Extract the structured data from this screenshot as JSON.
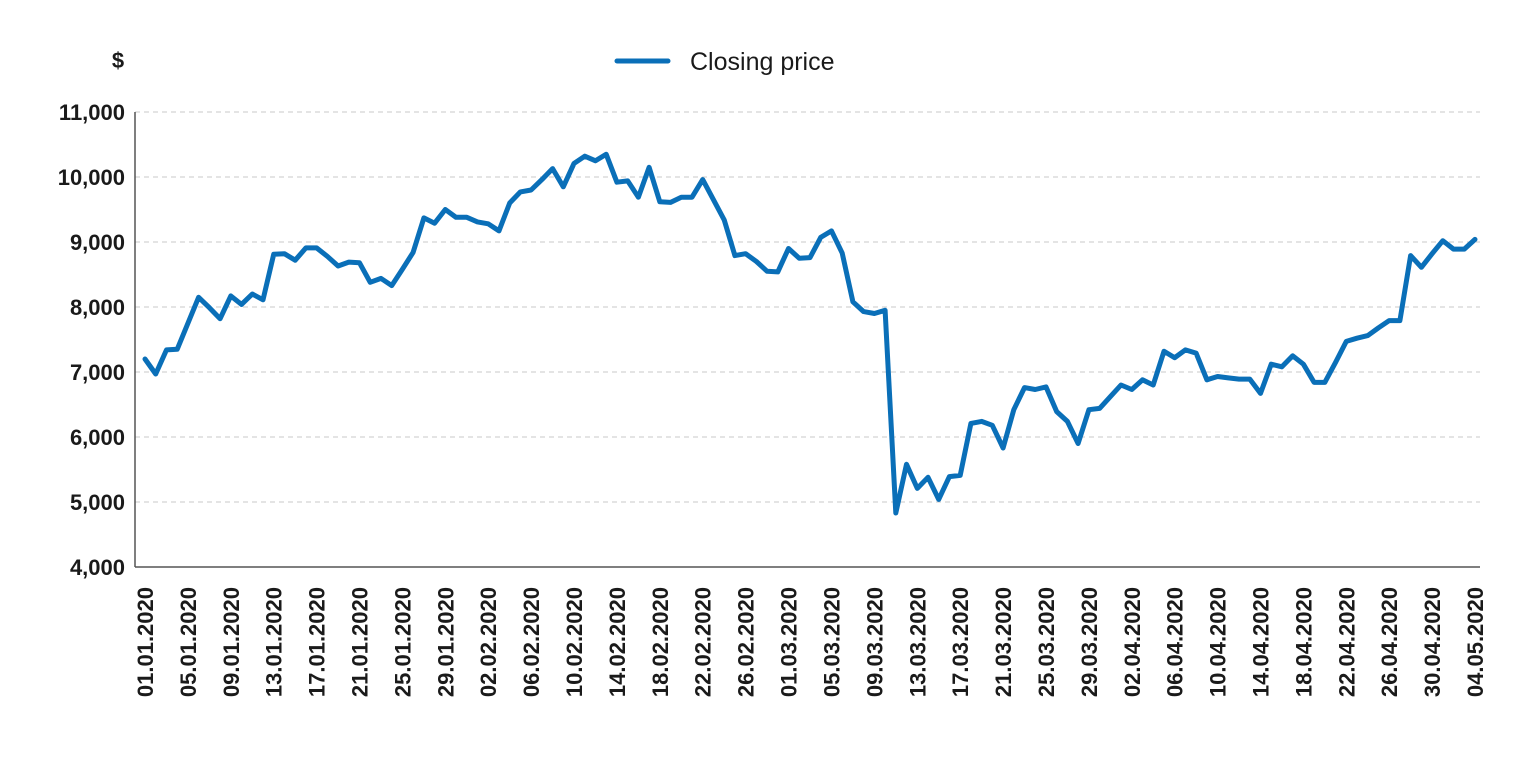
{
  "chart_data": {
    "type": "line",
    "title": "",
    "xlabel": "",
    "ylabel": "",
    "y_unit": "$",
    "ylim": [
      4000,
      11000
    ],
    "yticks": [
      4000,
      5000,
      6000,
      7000,
      8000,
      9000,
      10000,
      11000
    ],
    "ytick_labels": [
      "4,000",
      "5,000",
      "6,000",
      "7,000",
      "8,000",
      "9,000",
      "10,000",
      "11,000"
    ],
    "grid": "horizontal dashed",
    "legend_position": "top-center",
    "line_color": "#0a6fb8",
    "xtick_labels": [
      "01.01.2020",
      "05.01.2020",
      "09.01.2020",
      "13.01.2020",
      "17.01.2020",
      "21.01.2020",
      "25.01.2020",
      "29.01.2020",
      "02.02.2020",
      "06.02.2020",
      "10.02.2020",
      "14.02.2020",
      "18.02.2020",
      "22.02.2020",
      "26.02.2020",
      "01.03.2020",
      "05.03.2020",
      "09.03.2020",
      "13.03.2020",
      "17.03.2020",
      "21.03.2020",
      "25.03.2020",
      "29.03.2020",
      "02.04.2020",
      "06.04.2020",
      "10.04.2020",
      "14.04.2020",
      "18.04.2020",
      "22.04.2020",
      "26.04.2020",
      "30.04.2020",
      "04.05.2020"
    ],
    "series": [
      {
        "name": "Closing price",
        "values": [
          7200,
          6970,
          7340,
          7350,
          7750,
          8150,
          7990,
          7820,
          8170,
          8040,
          8200,
          8110,
          8810,
          8820,
          8720,
          8910,
          8910,
          8780,
          8630,
          8690,
          8680,
          8380,
          8440,
          8330,
          8580,
          8840,
          9370,
          9290,
          9500,
          9380,
          9380,
          9310,
          9280,
          9170,
          9600,
          9770,
          9800,
          9960,
          10130,
          9850,
          10210,
          10320,
          10250,
          10350,
          9920,
          9940,
          9690,
          10150,
          9620,
          9610,
          9690,
          9690,
          9960,
          9650,
          9340,
          8790,
          8820,
          8700,
          8550,
          8540,
          8900,
          8750,
          8760,
          9070,
          9170,
          8830,
          8080,
          7930,
          7900,
          7950,
          4830,
          5580,
          5210,
          5380,
          5040,
          5390,
          5410,
          6210,
          6240,
          6180,
          5830,
          6420,
          6760,
          6730,
          6770,
          6390,
          6240,
          5900,
          6420,
          6440,
          6620,
          6800,
          6730,
          6880,
          6800,
          7320,
          7220,
          7340,
          7290,
          6880,
          6930,
          6910,
          6890,
          6890,
          6670,
          7120,
          7080,
          7250,
          7120,
          6840,
          6840,
          7150,
          7470,
          7520,
          7560,
          7680,
          7790,
          7790,
          8790,
          8610,
          8820,
          9020,
          8890,
          8890,
          9040
        ]
      }
    ]
  }
}
